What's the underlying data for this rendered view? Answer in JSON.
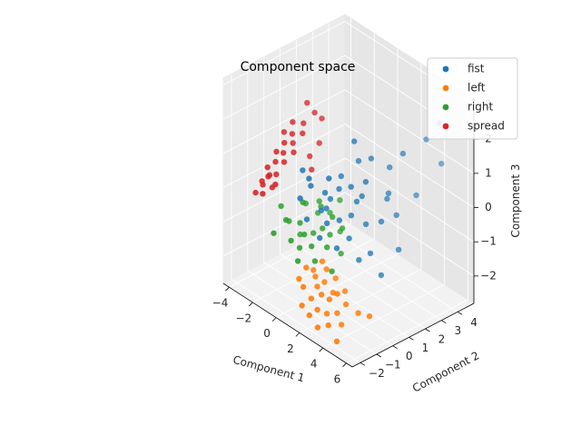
{
  "chart_data": {
    "type": "scatter",
    "projection": "3d",
    "title": "Component space",
    "xlabel": "Component 1",
    "ylabel": "Component 2",
    "zlabel": "Component 3",
    "xlim": [
      -4.5,
      6.5
    ],
    "ylim": [
      -2.5,
      5
    ],
    "zlim": [
      -2.8,
      3.2
    ],
    "xticks": [
      -4,
      -2,
      0,
      2,
      4,
      6
    ],
    "yticks": [
      -2,
      -1,
      0,
      1,
      2,
      3,
      4
    ],
    "zticks": [
      -2,
      -1,
      0,
      1,
      2,
      3
    ],
    "grid": true,
    "legend_position": "top-right",
    "series": [
      {
        "name": "fist",
        "color": "#1f77b4",
        "points": [
          [
            2.1,
            0.8,
            2.0
          ],
          [
            3.0,
            1.2,
            1.6
          ],
          [
            4.6,
            2.0,
            1.9
          ],
          [
            5.2,
            3.0,
            2.2
          ],
          [
            5.8,
            3.5,
            1.5
          ],
          [
            5.5,
            3.6,
            2.6
          ],
          [
            4.9,
            2.6,
            0.6
          ],
          [
            3.8,
            1.6,
            0.5
          ],
          [
            2.6,
            0.6,
            0.4
          ],
          [
            1.5,
            0.3,
            0.6
          ],
          [
            0.9,
            0.2,
            0.2
          ],
          [
            0.4,
            0.0,
            -0.2
          ],
          [
            1.0,
            -0.2,
            0.5
          ],
          [
            1.8,
            0.1,
            -0.2
          ],
          [
            2.4,
            0.4,
            0.0
          ],
          [
            3.1,
            0.8,
            -0.2
          ],
          [
            4.0,
            1.1,
            0.0
          ],
          [
            4.6,
            1.6,
            0.2
          ],
          [
            5.2,
            1.3,
            -0.6
          ],
          [
            3.9,
            0.5,
            -0.8
          ],
          [
            2.5,
            0.2,
            -0.6
          ],
          [
            1.3,
            -0.3,
            -0.3
          ],
          [
            0.2,
            -0.5,
            0.6
          ],
          [
            -0.3,
            -0.8,
            0.2
          ],
          [
            0.6,
            -0.9,
            1.0
          ],
          [
            1.6,
            -0.4,
            1.1
          ],
          [
            2.8,
            0.1,
            1.0
          ],
          [
            3.5,
            0.5,
            1.2
          ],
          [
            2.0,
            -0.2,
            -0.9
          ],
          [
            3.2,
            0.3,
            -1.1
          ],
          [
            4.4,
            0.8,
            -1.4
          ],
          [
            1.1,
            -0.6,
            -0.7
          ],
          [
            0.0,
            -0.6,
            -0.4
          ],
          [
            -0.5,
            -0.5,
            0.9
          ],
          [
            2.2,
            1.0,
            1.4
          ],
          [
            3.6,
            1.9,
            1.3
          ],
          [
            1.4,
            0.5,
            0.9
          ],
          [
            0.7,
            0.1,
            -0.1
          ],
          [
            2.9,
            0.7,
            0.6
          ],
          [
            4.2,
            1.4,
            0.8
          ]
        ]
      },
      {
        "name": "left",
        "color": "#ff7f0e",
        "points": [
          [
            0.5,
            -1.0,
            -1.6
          ],
          [
            1.0,
            -0.8,
            -1.8
          ],
          [
            1.5,
            -0.6,
            -1.9
          ],
          [
            0.8,
            -1.4,
            -2.0
          ],
          [
            1.8,
            -1.0,
            -2.1
          ],
          [
            2.2,
            -0.8,
            -2.2
          ],
          [
            1.2,
            -1.2,
            -2.3
          ],
          [
            2.6,
            -0.6,
            -2.0
          ],
          [
            0.3,
            -1.3,
            -1.9
          ],
          [
            2.0,
            -1.4,
            -2.4
          ],
          [
            1.4,
            -0.4,
            -1.6
          ],
          [
            2.4,
            -1.1,
            -2.5
          ],
          [
            3.0,
            -0.9,
            -2.4
          ],
          [
            1.6,
            -1.6,
            -2.6
          ],
          [
            0.7,
            -0.7,
            -1.7
          ],
          [
            3.2,
            -0.5,
            -2.2
          ],
          [
            2.8,
            -1.3,
            -2.7
          ],
          [
            1.9,
            -0.2,
            -1.8
          ],
          [
            1.1,
            -1.7,
            -2.4
          ],
          [
            2.3,
            -1.6,
            -2.8
          ],
          [
            0.9,
            -0.3,
            -1.5
          ],
          [
            3.5,
            -1.0,
            -2.6
          ],
          [
            2.7,
            -0.2,
            -2.0
          ],
          [
            1.3,
            -0.9,
            -2.0
          ],
          [
            2.1,
            -0.5,
            -2.1
          ],
          [
            5.2,
            -0.5,
            -2.1
          ],
          [
            4.8,
            -0.9,
            -2.0
          ],
          [
            3.8,
            -1.5,
            -2.9
          ]
        ]
      },
      {
        "name": "right",
        "color": "#2ca02c",
        "points": [
          [
            -1.0,
            -0.3,
            -0.8
          ],
          [
            -0.5,
            -0.4,
            -1.0
          ],
          [
            0.0,
            -0.2,
            -0.9
          ],
          [
            0.5,
            0.0,
            -0.7
          ],
          [
            1.0,
            0.1,
            -0.8
          ],
          [
            -1.5,
            -0.8,
            -0.7
          ],
          [
            -0.8,
            -1.0,
            -1.1
          ],
          [
            -0.2,
            -0.9,
            -1.2
          ],
          [
            0.4,
            -0.6,
            -1.1
          ],
          [
            1.3,
            -0.3,
            -1.0
          ],
          [
            -1.2,
            0.2,
            -0.4
          ],
          [
            -0.3,
            0.3,
            -0.5
          ],
          [
            0.8,
            0.4,
            -0.4
          ],
          [
            -2.0,
            -1.2,
            -1.1
          ],
          [
            -1.8,
            -0.4,
            -0.9
          ],
          [
            0.2,
            -1.3,
            -1.4
          ],
          [
            1.5,
            0.5,
            -0.6
          ],
          [
            -0.6,
            0.6,
            -0.3
          ],
          [
            0.6,
            1.0,
            -0.1
          ],
          [
            1.8,
            0.2,
            -1.2
          ],
          [
            -1.4,
            0.0,
            -1.3
          ],
          [
            0.1,
            0.2,
            -0.2
          ],
          [
            -2.2,
            -0.6,
            -0.5
          ],
          [
            1.1,
            -0.9,
            -1.3
          ],
          [
            -0.9,
            -0.2,
            -0.2
          ],
          [
            2.0,
            -0.5,
            -1.5
          ],
          [
            0.9,
            0.8,
            -0.9
          ],
          [
            -0.1,
            0.9,
            -0.6
          ]
        ]
      },
      {
        "name": "spread",
        "color": "#d62728",
        "points": [
          [
            -2.6,
            -0.6,
            1.0
          ],
          [
            -2.2,
            -0.4,
            1.3
          ],
          [
            -1.8,
            -0.2,
            1.6
          ],
          [
            -1.4,
            0.2,
            1.9
          ],
          [
            -1.0,
            0.6,
            2.2
          ],
          [
            -2.8,
            -1.0,
            0.6
          ],
          [
            -2.4,
            -0.8,
            0.8
          ],
          [
            -2.0,
            -0.6,
            1.1
          ],
          [
            -1.6,
            -0.3,
            1.4
          ],
          [
            -1.2,
            0.0,
            1.7
          ],
          [
            -3.0,
            -1.2,
            0.2
          ],
          [
            -2.6,
            -1.1,
            0.4
          ],
          [
            -2.2,
            -0.9,
            0.5
          ],
          [
            -1.8,
            -0.7,
            0.9
          ],
          [
            -1.4,
            -0.4,
            1.2
          ],
          [
            -3.2,
            -1.0,
            0.0
          ],
          [
            -2.8,
            -1.3,
            -0.1
          ],
          [
            -2.4,
            -1.0,
            0.1
          ],
          [
            -2.0,
            -1.1,
            0.3
          ],
          [
            -0.6,
            0.6,
            1.4
          ],
          [
            -1.0,
            0.3,
            1.0
          ],
          [
            -0.8,
            0.9,
            2.0
          ],
          [
            -3.4,
            -1.3,
            -0.2
          ],
          [
            -2.9,
            -0.8,
            0.3
          ],
          [
            -1.5,
            0.5,
            2.4
          ],
          [
            -1.9,
            -0.1,
            1.9
          ],
          [
            -0.7,
            0.2,
            0.7
          ],
          [
            -2.5,
            -0.2,
            1.5
          ]
        ]
      }
    ]
  }
}
